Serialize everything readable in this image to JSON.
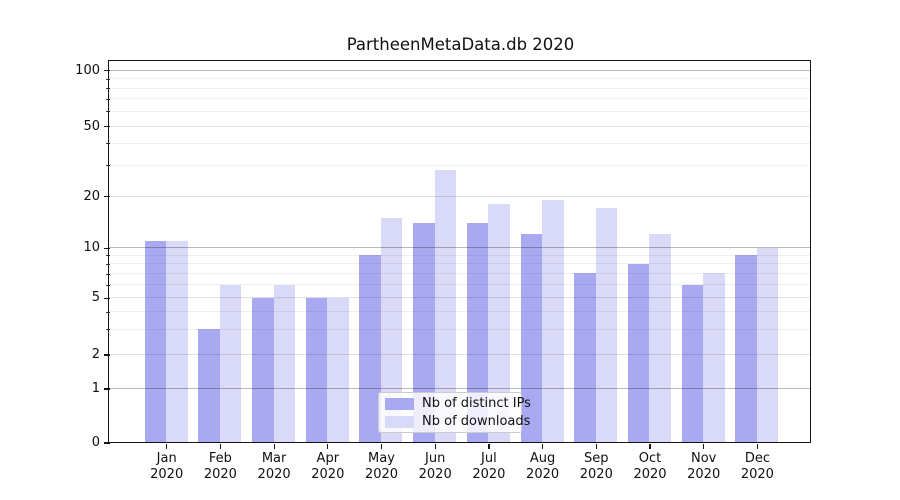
{
  "title": "PartheenMetaData.db 2020",
  "colors": {
    "ips_bar": "#a9a9f1",
    "downloads_bar": "#d9d9f8",
    "grid_major": "#b9b9b9",
    "grid_mid": "#e1e1e1",
    "grid_minor": "#efefef",
    "axis": "#151515",
    "background": "#ffffff"
  },
  "chart_data": {
    "type": "bar",
    "title": "PartheenMetaData.db 2020",
    "categories": [
      "Jan 2020",
      "Feb 2020",
      "Mar 2020",
      "Apr 2020",
      "May 2020",
      "Jun 2020",
      "Jul 2020",
      "Aug 2020",
      "Sep 2020",
      "Oct 2020",
      "Nov 2020",
      "Dec 2020"
    ],
    "series": [
      {
        "name": "Nb of distinct IPs",
        "color": "#a9a9f1",
        "values": [
          11,
          3,
          5,
          5,
          9,
          14,
          14,
          12,
          7,
          8,
          6,
          9
        ]
      },
      {
        "name": "Nb of downloads",
        "color": "#d9d9f8",
        "values": [
          11,
          6,
          6,
          5,
          15,
          28,
          18,
          19,
          17,
          12,
          7,
          10
        ]
      }
    ],
    "xlabel": "",
    "ylabel": "",
    "yscale": "symlog",
    "yticks": [
      0,
      1,
      2,
      5,
      10,
      20,
      50,
      100
    ],
    "ylim": [
      0,
      112
    ],
    "grid": true,
    "legend_position": "lower center"
  },
  "legend": {
    "items": [
      {
        "label": "Nb of distinct IPs",
        "color": "#a9a9f1"
      },
      {
        "label": "Nb of downloads",
        "color": "#d9d9f8"
      }
    ]
  }
}
